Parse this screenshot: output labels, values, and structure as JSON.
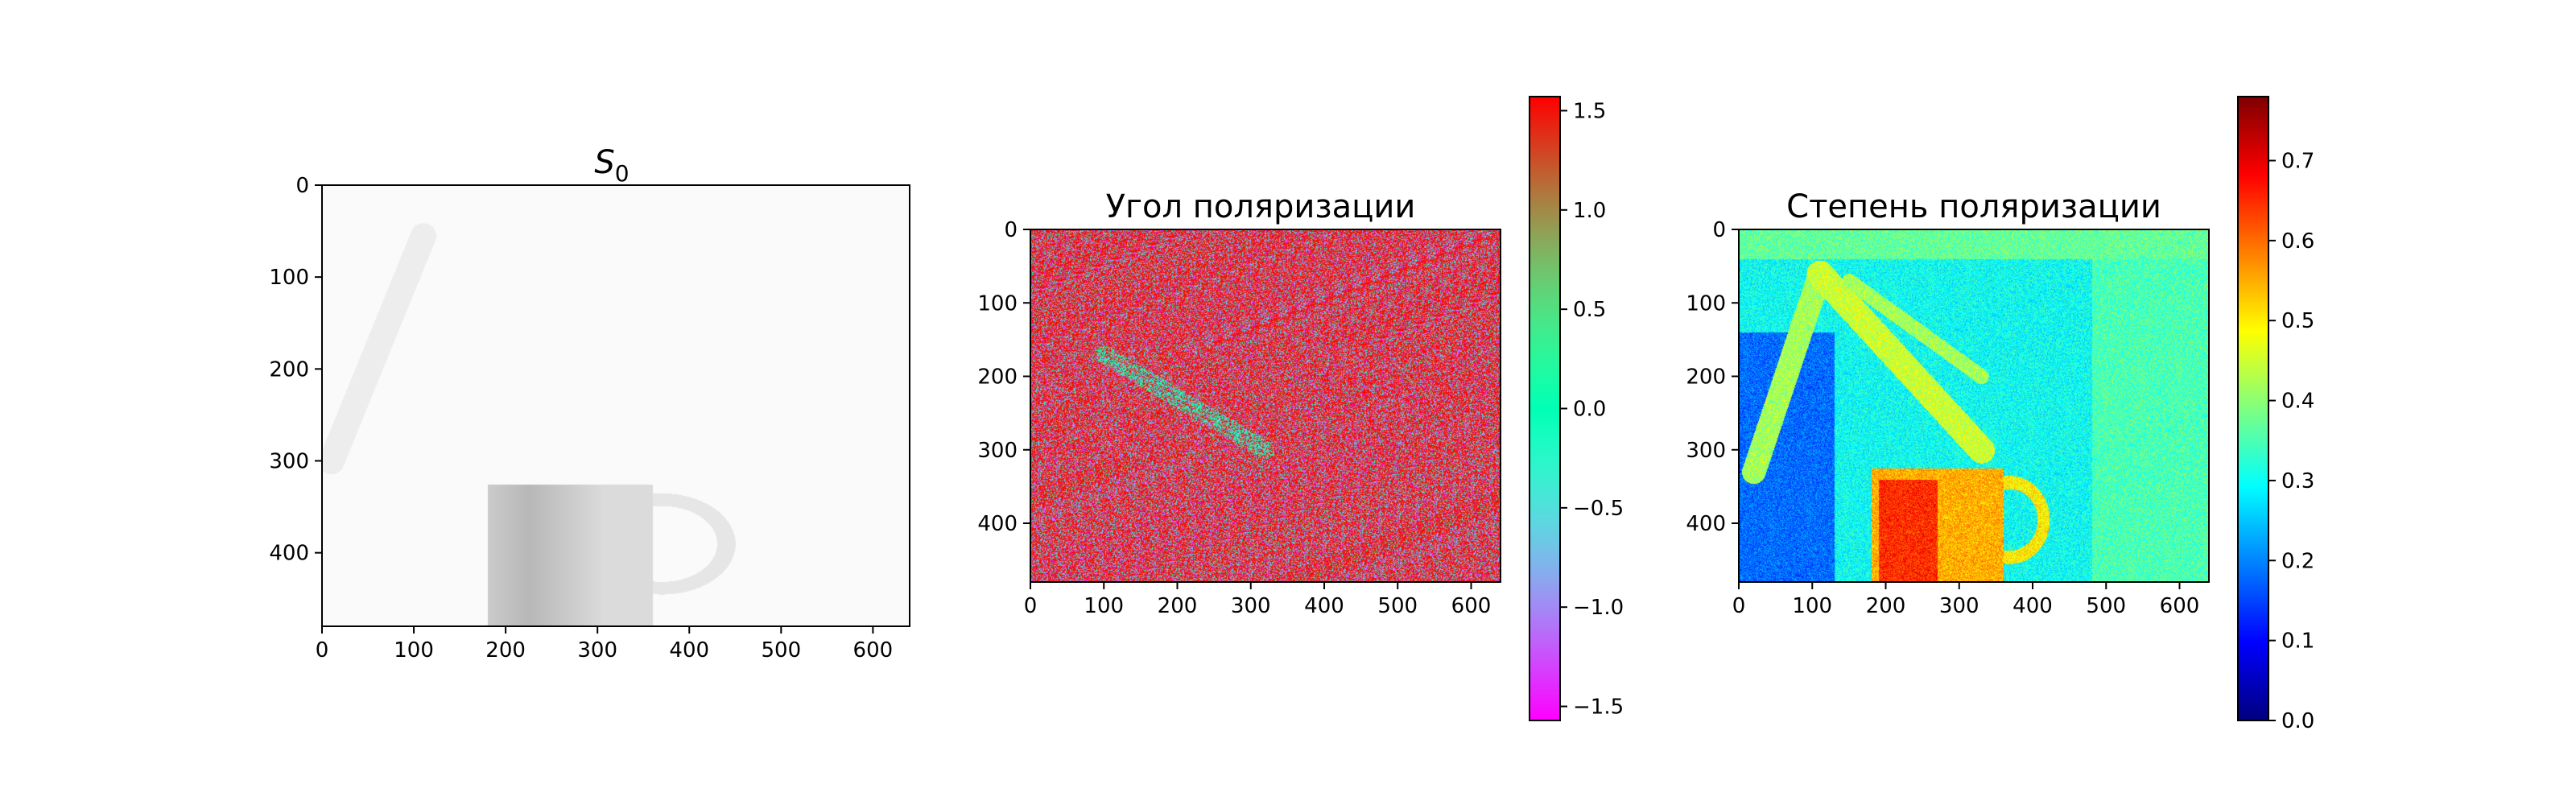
{
  "figure": {
    "background": "#ffffff"
  },
  "chart_data": [
    {
      "type": "heatmap",
      "title": "S₀",
      "title_main": "S",
      "title_sub": "0",
      "colormap": "gray",
      "xlim": [
        0,
        640
      ],
      "ylim": [
        480,
        0
      ],
      "xticks": [
        0,
        100,
        200,
        300,
        400,
        500,
        600
      ],
      "yticks": [
        0,
        100,
        200,
        300,
        400
      ],
      "scene": {
        "background_level": 0.98,
        "mug": {
          "x": [
            180,
            360
          ],
          "y": [
            325,
            480
          ],
          "handle_x": 440,
          "level": 0.86,
          "shadow_level": 0.72
        },
        "diagonal_shadow": {
          "from": [
            110,
            55
          ],
          "to": [
            10,
            300
          ],
          "level": 0.93
        }
      }
    },
    {
      "type": "heatmap",
      "title": "Угол поляризации",
      "colormap": "rainbow",
      "xlim": [
        0,
        640
      ],
      "ylim": [
        480,
        0
      ],
      "xticks": [
        0,
        100,
        200,
        300,
        400,
        500,
        600
      ],
      "yticks": [
        0,
        100,
        200,
        300,
        400
      ],
      "colorbar": {
        "min": -1.5708,
        "max": 1.5708,
        "ticks": [
          1.5,
          1.0,
          0.5,
          0.0,
          -0.5,
          -1.0,
          -1.5
        ],
        "tick_labels": [
          "1.5",
          "1.0",
          "0.5",
          "0.0",
          "−0.5",
          "−1.0",
          "−1.5"
        ]
      },
      "scene": {
        "dominant_value": 1.5,
        "noise": "high",
        "diagonal_band": {
          "from": [
            100,
            170
          ],
          "to": [
            320,
            300
          ],
          "value": 0.0
        }
      }
    },
    {
      "type": "heatmap",
      "title": "Степень поляризации",
      "colormap": "jet",
      "xlim": [
        0,
        640
      ],
      "ylim": [
        480,
        0
      ],
      "xticks": [
        0,
        100,
        200,
        300,
        400,
        500,
        600
      ],
      "yticks": [
        0,
        100,
        200,
        300,
        400
      ],
      "colorbar": {
        "min": 0.0,
        "max": 0.78,
        "ticks": [
          0.7,
          0.6,
          0.5,
          0.4,
          0.3,
          0.2,
          0.1,
          0.0
        ],
        "tick_labels": [
          "0.7",
          "0.6",
          "0.5",
          "0.4",
          "0.3",
          "0.2",
          "0.1",
          "0.0"
        ]
      },
      "scene": {
        "background_value": 0.3,
        "left_region_value": 0.18,
        "upper_band_value": 0.42,
        "right_region_value": 0.35,
        "triangle_value": 0.42,
        "mug": {
          "x": [
            180,
            360
          ],
          "y": [
            325,
            480
          ],
          "value": 0.55,
          "core_value": 0.6
        }
      }
    }
  ]
}
